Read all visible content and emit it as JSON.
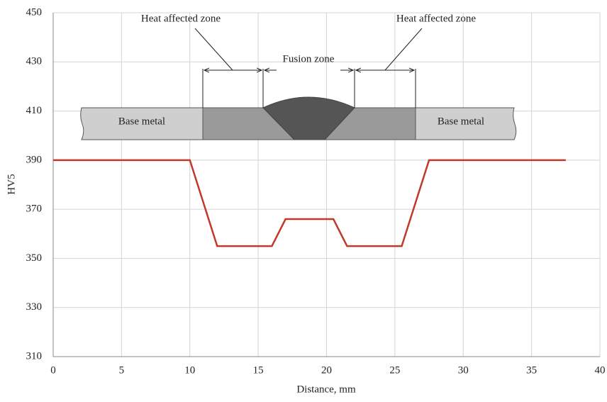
{
  "chart_data": {
    "type": "line",
    "x_label": "Distance, mm",
    "y_label": "HV5",
    "series": [
      {
        "name": "HV5",
        "color": "#c0392b",
        "x": [
          0,
          10,
          12,
          16,
          17,
          20.5,
          21.5,
          25.5,
          27.5,
          37.5
        ],
        "values": [
          390,
          390,
          355,
          355,
          366,
          366,
          355,
          355,
          390,
          390
        ]
      }
    ],
    "xlim": [
      0,
      40
    ],
    "xticks": [
      0,
      5,
      10,
      15,
      20,
      25,
      30,
      35,
      40
    ],
    "ylim": [
      310,
      450
    ],
    "yticks": [
      310,
      330,
      350,
      370,
      390,
      410,
      430,
      450
    ],
    "grid": true,
    "legend": false,
    "annotations": [
      "Heat affected zone",
      "Fusion zone",
      "Heat affected zone",
      "Base metal",
      "Base metal"
    ]
  }
}
